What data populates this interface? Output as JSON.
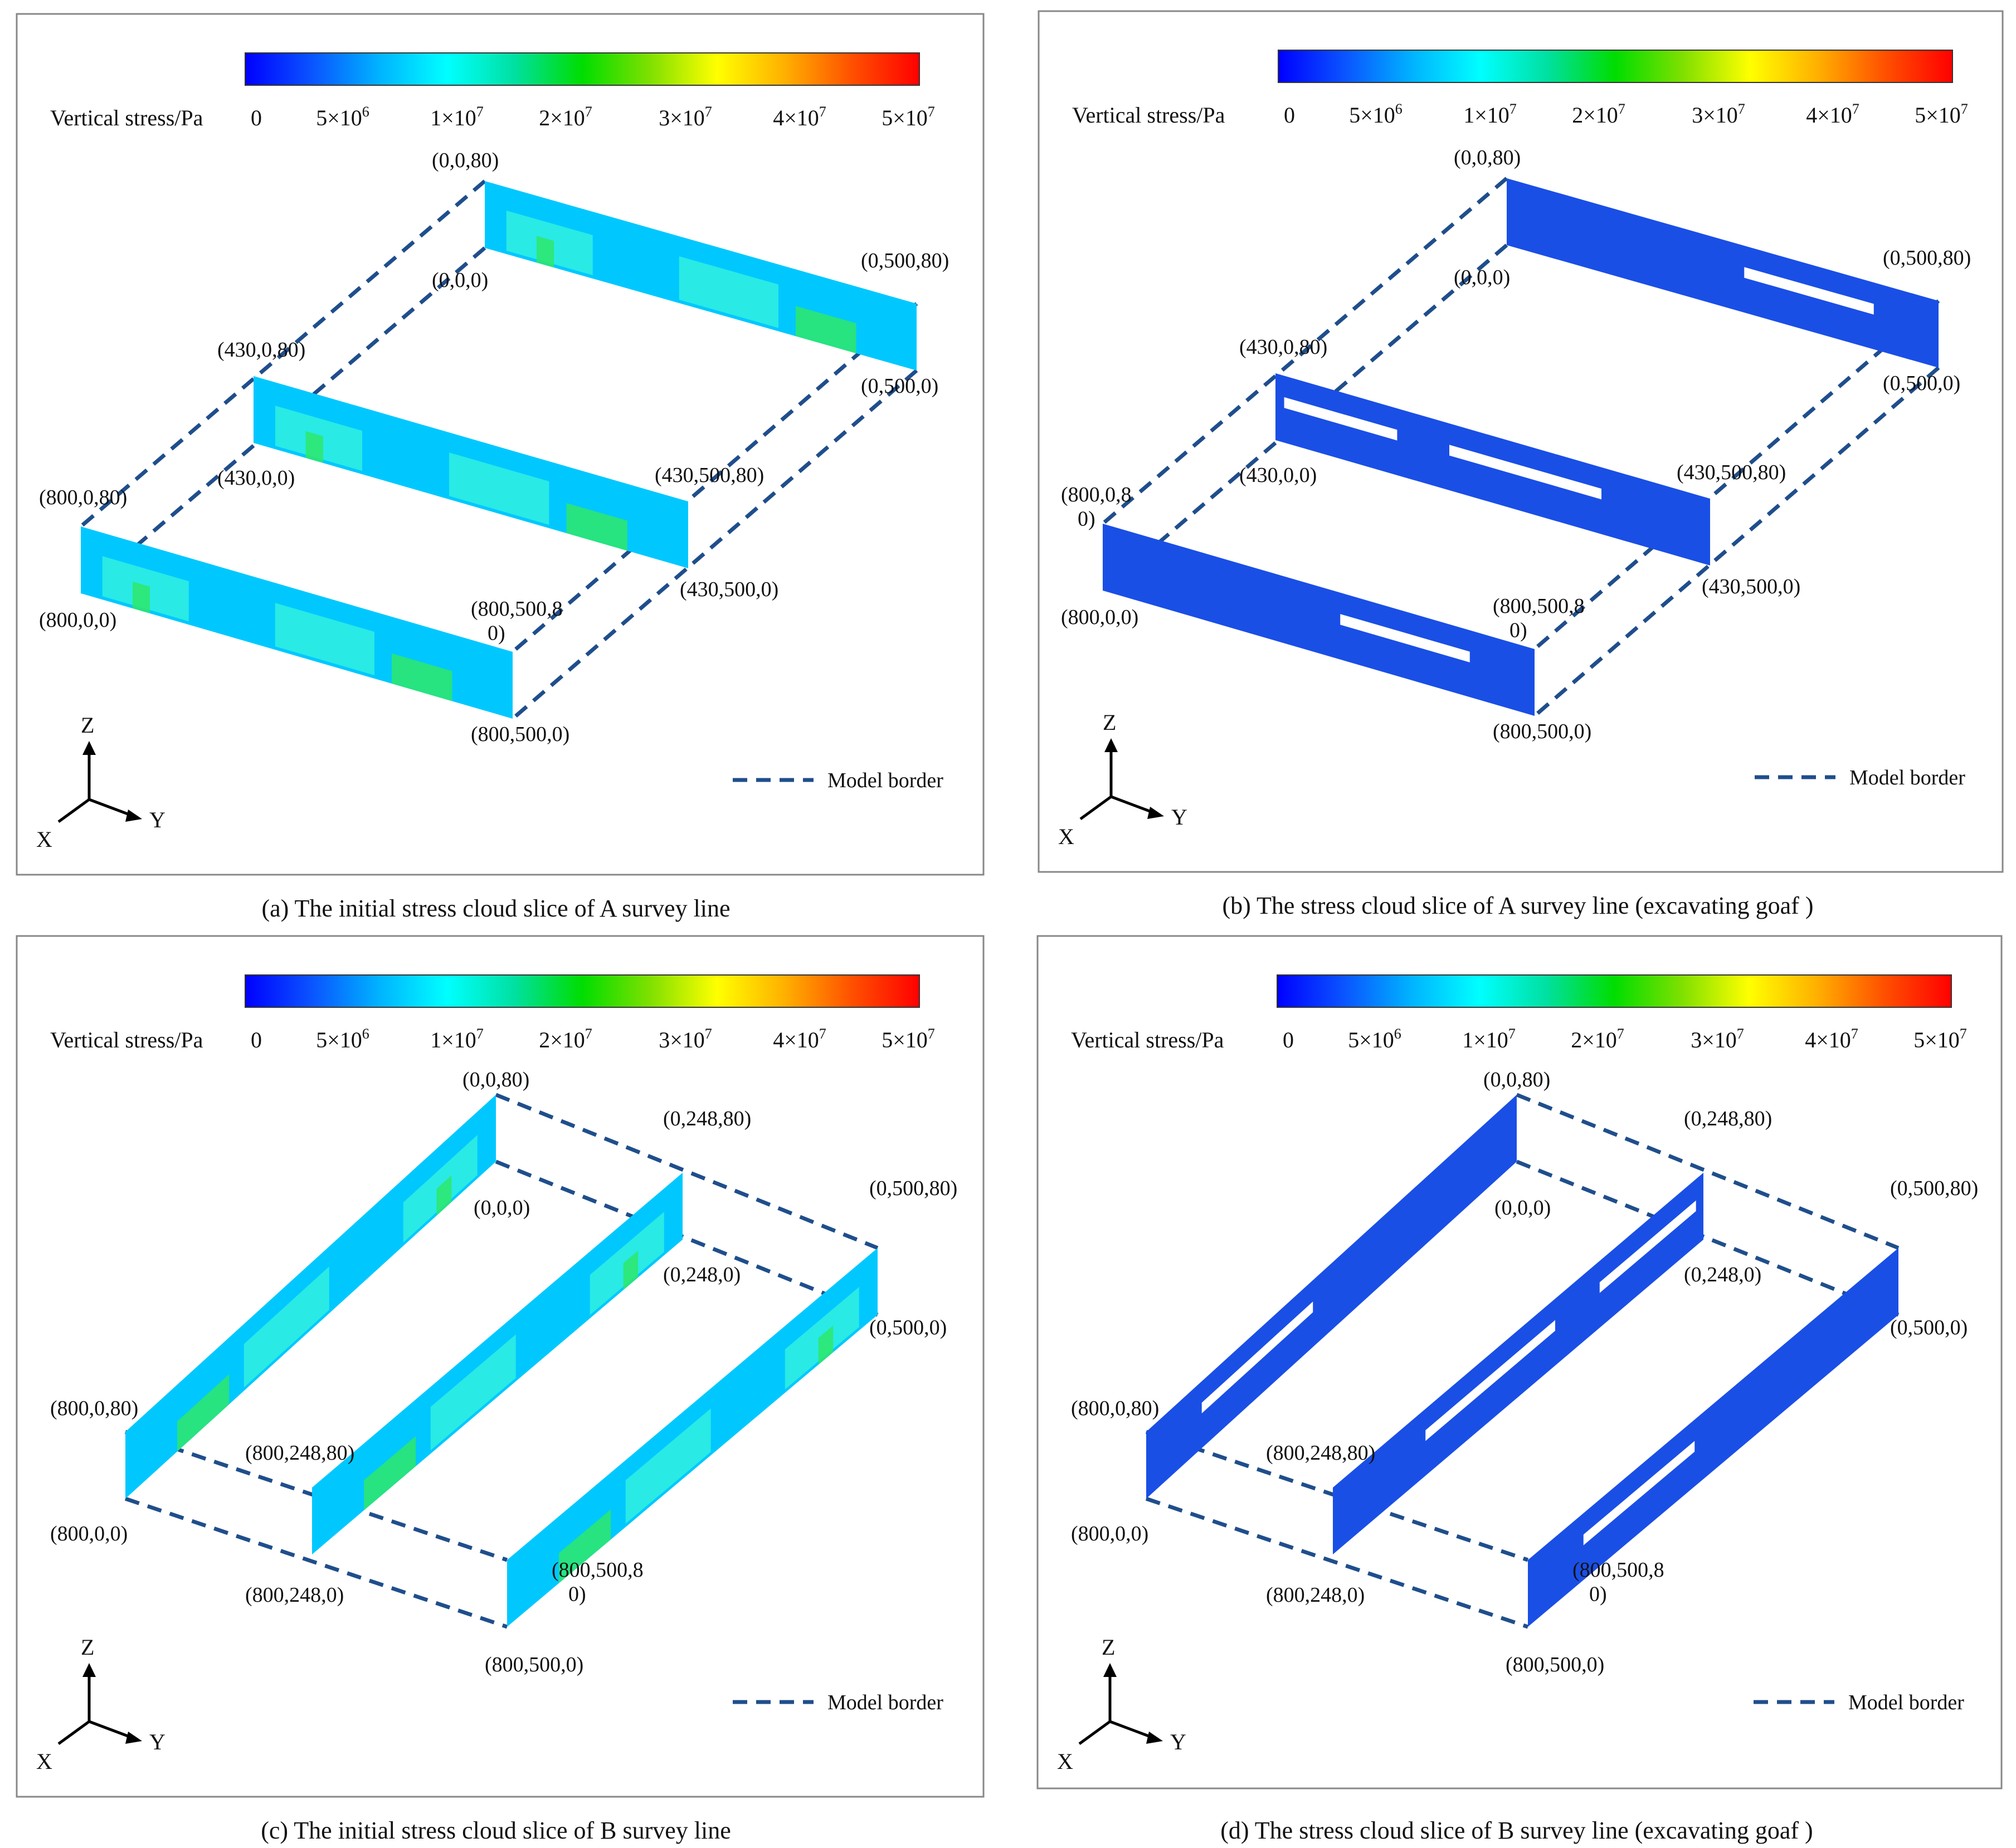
{
  "colors": {
    "border_line": "#1f4e8c",
    "panel_frame": "#888888",
    "text": "#111111",
    "colorbar_stops": [
      "#0000ff",
      "#0a55ff",
      "#00b4ff",
      "#00ffff",
      "#00e0a0",
      "#00dd00",
      "#7fe000",
      "#ffff00",
      "#ffb000",
      "#ff5000",
      "#ff0000"
    ],
    "stress_low": "#1a4fe6",
    "stress_light": "#00c8ff",
    "stress_cyan": "#30f0e0",
    "stress_green": "#2ee86a",
    "stress_mid": "#1aa8f0"
  },
  "legend": {
    "colorbar_label": "Vertical stress/Pa",
    "ticks": [
      {
        "base": "0",
        "exp": ""
      },
      {
        "base": "5×10",
        "exp": "6"
      },
      {
        "base": "1×10",
        "exp": "7"
      },
      {
        "base": "2×10",
        "exp": "7"
      },
      {
        "base": "3×10",
        "exp": "7"
      },
      {
        "base": "4×10",
        "exp": "7"
      },
      {
        "base": "5×10",
        "exp": "7"
      }
    ],
    "model_border_label": "Model border"
  },
  "axes_labels": {
    "z": "Z",
    "x": "X",
    "y": "Y"
  },
  "panels": [
    {
      "caption": "(a) The initial stress cloud slice of A survey line",
      "state": "initial",
      "coords": [
        "(0,0,80)",
        "(0,0,0)",
        "(0,500,80)",
        "(0,500,0)",
        "(430,0,80)",
        "(430,0,0)",
        "(430,500,80)",
        "(430,500,0)",
        "(800,0,80)",
        "(800,0,0)",
        "(800,500,8\n0)",
        "(800,500,0)"
      ]
    },
    {
      "caption": "(b) The stress cloud slice of A survey line (excavating goaf )",
      "state": "excavated",
      "coords": [
        "(0,0,80)",
        "(0,0,0)",
        "(0,500,80)",
        "(0,500,0)",
        "(430,0,80)",
        "(430,0,0)",
        "(430,500,80)",
        "(430,500,0)",
        "(800,0,8\n0)",
        "(800,0,0)",
        "(800,500,8\n0)",
        "(800,500,0)"
      ]
    },
    {
      "caption": "(c) The initial stress cloud slice of  B survey line",
      "state": "initial",
      "coords": [
        "(0,0,80)",
        "(0,0,0)",
        "(0,248,80)",
        "(0,248,0)",
        "(0,500,80)",
        "(0,500,0)",
        "(800,0,80)",
        "(800,0,0)",
        "(800,248,80)",
        "(800,248,0)",
        "(800,500,8\n0)",
        "(800,500,0)"
      ]
    },
    {
      "caption": "(d) The stress cloud slice of B survey line (excavating goaf )",
      "state": "excavated",
      "coords": [
        "(0,0,80)",
        "(0,0,0)",
        "(0,248,80)",
        "(0,248,0)",
        "(0,500,80)",
        "(0,500,0)",
        "(800,0,80)",
        "(800,0,0)",
        "(800,248,80)",
        "(800,248,0)",
        "(800,500,8\n0)",
        "(800,500,0)"
      ]
    }
  ]
}
